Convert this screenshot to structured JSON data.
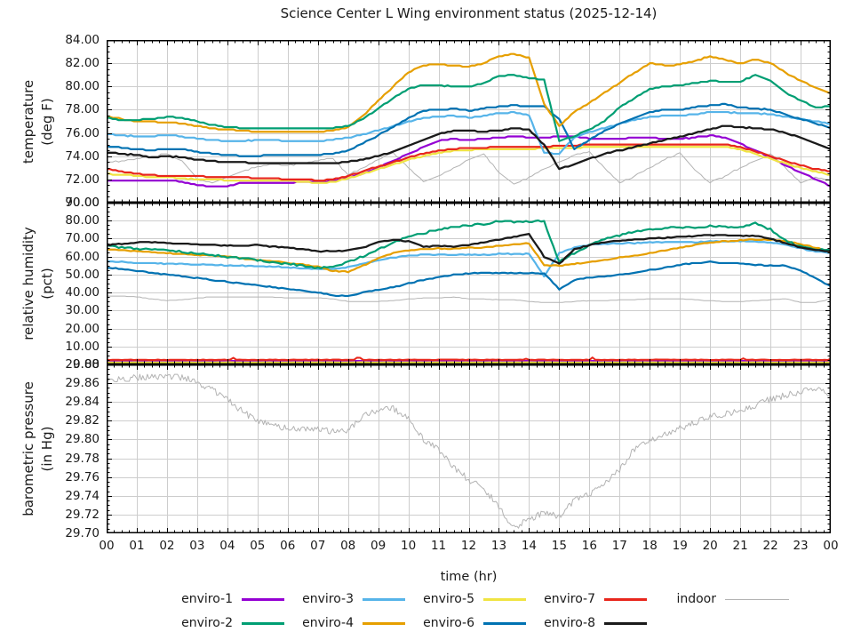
{
  "chart": {
    "title": "Science Center L Wing environment status (2025-12-14)",
    "xlabel": "time (hr)",
    "x_tick_labels": [
      "00",
      "01",
      "02",
      "03",
      "04",
      "05",
      "06",
      "07",
      "08",
      "09",
      "10",
      "11",
      "12",
      "13",
      "14",
      "15",
      "16",
      "17",
      "18",
      "19",
      "20",
      "21",
      "22",
      "23",
      "00"
    ],
    "colors": {
      "enviro-1": "#9400d3",
      "enviro-2": "#009e73",
      "enviro-3": "#56b4e9",
      "enviro-4": "#e69f00",
      "enviro-5": "#f0e442",
      "enviro-6": "#0072b2",
      "enviro-7": "#e8261c",
      "enviro-8": "#1a1a1a",
      "indoor": "#b3b3b3",
      "grid": "#cdcdcd",
      "frame": "#000000"
    },
    "legend": {
      "rows": [
        [
          "enviro-1",
          "enviro-3",
          "enviro-5",
          "enviro-7",
          "indoor"
        ],
        [
          "enviro-2",
          "enviro-4",
          "enviro-6",
          "enviro-8"
        ]
      ]
    }
  },
  "chart_data": [
    {
      "type": "line",
      "name": "temperature",
      "ylabel_lines": [
        "temperature",
        "(deg F)"
      ],
      "ylim": [
        70,
        84
      ],
      "ytick_step": 2,
      "ytick_decimals": 2,
      "xlim": [
        0,
        24
      ],
      "x_start": 0,
      "x_step": 0.5,
      "grid": true,
      "series": [
        {
          "name": "indoor",
          "values": [
            73.4,
            73.6,
            73.8,
            74.0,
            74.2,
            73.6,
            72.0,
            71.7,
            72.2,
            72.7,
            73.1,
            73.3,
            73.2,
            73.4,
            73.6,
            73.8,
            72.4,
            73.0,
            73.7,
            74.3,
            73.0,
            71.8,
            72.3,
            73.0,
            73.7,
            74.2,
            72.6,
            71.6,
            72.2,
            72.9,
            73.5,
            74.1,
            74.4,
            73.0,
            71.7,
            72.3,
            73.0,
            73.7,
            74.3,
            72.8,
            71.7,
            72.3,
            73.0,
            73.6,
            74.2,
            73.0,
            71.7,
            72.2,
            71.9
          ]
        },
        {
          "name": "enviro-1",
          "values": [
            71.9,
            71.9,
            71.9,
            71.9,
            71.9,
            71.8,
            71.5,
            71.4,
            71.4,
            71.7,
            71.7,
            71.7,
            71.7,
            71.8,
            71.8,
            71.9,
            72.1,
            72.5,
            73.0,
            73.6,
            74.2,
            74.8,
            75.3,
            75.5,
            75.4,
            75.5,
            75.6,
            75.7,
            75.6,
            75.6,
            75.7,
            75.7,
            75.5,
            75.5,
            75.5,
            75.6,
            75.6,
            75.5,
            75.5,
            75.6,
            75.8,
            75.6,
            75.1,
            74.5,
            73.9,
            73.2,
            72.6,
            72.0,
            71.4
          ]
        },
        {
          "name": "enviro-5",
          "values": [
            72.5,
            72.4,
            72.3,
            72.2,
            72.2,
            72.1,
            72.0,
            72.0,
            71.9,
            71.9,
            71.9,
            71.9,
            71.9,
            71.8,
            71.7,
            71.8,
            72.1,
            72.5,
            72.9,
            73.3,
            73.7,
            74.0,
            74.3,
            74.5,
            74.5,
            74.6,
            74.6,
            74.6,
            74.6,
            74.7,
            74.7,
            74.7,
            74.8,
            74.8,
            74.8,
            74.8,
            74.8,
            74.8,
            74.8,
            74.8,
            74.8,
            74.8,
            74.6,
            74.2,
            73.8,
            73.4,
            73.0,
            72.7,
            72.4
          ]
        },
        {
          "name": "enviro-7",
          "values": [
            72.9,
            72.7,
            72.5,
            72.4,
            72.3,
            72.3,
            72.3,
            72.2,
            72.2,
            72.2,
            72.1,
            72.1,
            72.0,
            72.0,
            71.9,
            72.0,
            72.3,
            72.7,
            73.1,
            73.5,
            73.9,
            74.2,
            74.5,
            74.6,
            74.7,
            74.7,
            74.8,
            74.8,
            74.8,
            74.8,
            74.9,
            74.9,
            75.0,
            75.0,
            75.0,
            75.0,
            75.0,
            75.0,
            75.0,
            75.0,
            75.0,
            75.0,
            74.8,
            74.4,
            74.0,
            73.6,
            73.2,
            72.9,
            72.7
          ]
        },
        {
          "name": "enviro-3",
          "values": [
            75.9,
            75.8,
            75.7,
            75.7,
            75.8,
            75.7,
            75.5,
            75.4,
            75.3,
            75.3,
            75.4,
            75.4,
            75.3,
            75.3,
            75.3,
            75.4,
            75.6,
            75.9,
            76.2,
            76.6,
            77.0,
            77.3,
            77.4,
            77.5,
            77.3,
            77.5,
            77.7,
            77.8,
            77.5,
            74.3,
            74.2,
            75.6,
            76.1,
            76.4,
            76.8,
            77.1,
            77.4,
            77.5,
            77.5,
            77.6,
            77.8,
            77.8,
            77.7,
            77.7,
            77.6,
            77.4,
            77.2,
            77.0,
            76.8
          ]
        },
        {
          "name": "enviro-6",
          "values": [
            74.9,
            74.7,
            74.6,
            74.5,
            74.6,
            74.6,
            74.4,
            74.2,
            74.1,
            74.0,
            74.0,
            74.1,
            74.1,
            74.1,
            74.1,
            74.2,
            74.5,
            75.1,
            75.8,
            76.5,
            77.3,
            77.9,
            78.0,
            78.1,
            77.9,
            78.1,
            78.3,
            78.4,
            78.3,
            78.3,
            77.2,
            74.6,
            75.4,
            76.2,
            76.8,
            77.3,
            77.8,
            78.0,
            78.0,
            78.2,
            78.4,
            78.5,
            78.2,
            78.1,
            78.0,
            77.6,
            77.2,
            76.8,
            76.4
          ]
        },
        {
          "name": "enviro-4",
          "values": [
            77.4,
            77.2,
            77.0,
            77.0,
            76.9,
            76.8,
            76.6,
            76.4,
            76.3,
            76.2,
            76.1,
            76.1,
            76.1,
            76.1,
            76.1,
            76.2,
            76.5,
            77.5,
            78.8,
            80.0,
            81.2,
            81.8,
            81.9,
            81.8,
            81.7,
            82.0,
            82.6,
            82.8,
            82.5,
            78.5,
            76.6,
            77.8,
            78.6,
            79.5,
            80.3,
            81.2,
            82.0,
            81.8,
            81.9,
            82.2,
            82.6,
            82.3,
            82.0,
            82.3,
            82.0,
            81.2,
            80.5,
            79.9,
            79.4
          ]
        },
        {
          "name": "enviro-2",
          "values": [
            77.3,
            77.1,
            77.1,
            77.2,
            77.4,
            77.3,
            77.0,
            76.7,
            76.5,
            76.4,
            76.4,
            76.4,
            76.4,
            76.4,
            76.4,
            76.4,
            76.6,
            77.2,
            78.1,
            79.0,
            79.8,
            80.1,
            80.1,
            80.0,
            80.0,
            80.3,
            80.9,
            81.0,
            80.7,
            80.6,
            75.3,
            75.7,
            76.3,
            77.0,
            78.2,
            79.0,
            79.8,
            80.0,
            80.1,
            80.3,
            80.5,
            80.4,
            80.4,
            81.0,
            80.5,
            79.5,
            78.8,
            78.2,
            78.3
          ]
        },
        {
          "name": "enviro-8",
          "values": [
            74.3,
            74.2,
            74.1,
            73.9,
            74.0,
            73.9,
            73.7,
            73.6,
            73.5,
            73.5,
            73.4,
            73.4,
            73.4,
            73.4,
            73.4,
            73.4,
            73.5,
            73.7,
            74.0,
            74.4,
            74.9,
            75.4,
            75.9,
            76.2,
            76.2,
            76.1,
            76.2,
            76.4,
            76.3,
            75.0,
            72.9,
            73.3,
            73.8,
            74.2,
            74.5,
            74.8,
            75.1,
            75.4,
            75.7,
            76.0,
            76.3,
            76.6,
            76.5,
            76.4,
            76.3,
            76.0,
            75.6,
            75.1,
            74.6
          ]
        }
      ]
    },
    {
      "type": "line",
      "name": "relative-humidity",
      "ylabel_lines": [
        "relative humidity",
        "(pct)"
      ],
      "ylim": [
        0,
        90
      ],
      "ytick_step": 10,
      "ytick_decimals": 2,
      "xlim": [
        0,
        24
      ],
      "x_start": 0,
      "x_step": 0.5,
      "grid": true,
      "series": [
        {
          "name": "indoor",
          "values": [
            38,
            38,
            37.5,
            36.5,
            35.5,
            36,
            37,
            37.5,
            37.5,
            37.5,
            37.5,
            37.5,
            37,
            37,
            37,
            36.5,
            35,
            35,
            35,
            35.5,
            36.5,
            37,
            37,
            37.5,
            36.5,
            36.5,
            36,
            36,
            35,
            34.5,
            34.5,
            35,
            35.5,
            35.5,
            36,
            36,
            36.5,
            36.5,
            36.5,
            36,
            35.5,
            35,
            35,
            35.5,
            36,
            36.5,
            34.5,
            34.5,
            36.5
          ]
        },
        {
          "name": "enviro-1",
          "values": 2.0
        },
        {
          "name": "enviro-5",
          "values": 1.2
        },
        {
          "name": "enviro-7",
          "values": 2.6
        },
        {
          "name": "enviro-3",
          "values": [
            57.5,
            57,
            56.5,
            56.5,
            56,
            56,
            55.5,
            55.5,
            55,
            55,
            54.5,
            54.5,
            54,
            53.5,
            53,
            53,
            54,
            56,
            58,
            59.5,
            60.5,
            61,
            61,
            61,
            61,
            61,
            61.5,
            61.5,
            61.5,
            49,
            62,
            65,
            66.5,
            67,
            67.5,
            67.5,
            68,
            68,
            68,
            68,
            68.5,
            68.5,
            68.5,
            68.5,
            68,
            66.5,
            64.5,
            63,
            62
          ]
        },
        {
          "name": "enviro-6",
          "values": [
            54,
            53,
            52,
            51,
            50,
            49,
            48,
            47,
            46,
            45,
            44,
            43,
            42,
            41,
            40,
            38.5,
            38,
            40,
            41.5,
            43,
            45,
            47,
            48.5,
            50,
            50.5,
            51,
            51,
            51,
            51,
            50.5,
            42,
            47,
            48.5,
            49,
            50,
            51,
            52.5,
            54,
            55.5,
            56.5,
            57,
            56.5,
            56,
            55.5,
            55,
            55,
            52,
            48,
            43.5
          ]
        },
        {
          "name": "enviro-4",
          "values": [
            64,
            63.5,
            63,
            62.5,
            62,
            61.5,
            61,
            60.5,
            60,
            59,
            58,
            57.5,
            56.5,
            55.5,
            54.5,
            52,
            51.5,
            55,
            59,
            62,
            63.5,
            64,
            64.5,
            64.5,
            65,
            65,
            66,
            67,
            67.5,
            55,
            55,
            56,
            57,
            58,
            59.5,
            60.5,
            62,
            63.5,
            65,
            66.5,
            68,
            68.5,
            69,
            69.5,
            69.5,
            68.5,
            67,
            65,
            62.5
          ]
        },
        {
          "name": "enviro-2",
          "values": [
            66,
            65,
            64.5,
            64,
            63.5,
            62.5,
            61.5,
            61,
            60,
            59,
            58,
            57,
            56,
            55,
            53.5,
            54,
            57,
            60,
            64,
            68,
            71,
            73,
            75,
            76.5,
            77.5,
            78,
            80,
            79,
            79.5,
            79.5,
            57,
            62,
            66,
            70,
            72,
            74,
            75,
            76,
            76.5,
            76,
            77,
            76.5,
            76.5,
            78.5,
            75,
            69,
            65.5,
            64,
            63.5
          ]
        },
        {
          "name": "enviro-8",
          "values": [
            66.5,
            67,
            68,
            68,
            67.5,
            67,
            67,
            66.5,
            66,
            66,
            66.5,
            65.5,
            65,
            64,
            63,
            63,
            63.5,
            65,
            68,
            69.5,
            68.5,
            65.5,
            66,
            65.5,
            66.5,
            68,
            69.5,
            71,
            72.5,
            60,
            56,
            64,
            66.5,
            68,
            69,
            69.5,
            70,
            70.5,
            71,
            71.5,
            72,
            72,
            71.5,
            71.5,
            70,
            67.5,
            65,
            63.5,
            63
          ]
        }
      ]
    },
    {
      "type": "line",
      "name": "barometric-pressure",
      "ylabel_lines": [
        "barometric pressure",
        "(in Hg)"
      ],
      "ylim": [
        29.7,
        29.88
      ],
      "ytick_step": 0.02,
      "ytick_decimals": 2,
      "xlim": [
        0,
        24
      ],
      "x_start": 0,
      "x_step": 0.5,
      "grid": true,
      "series": [
        {
          "name": "indoor",
          "values": [
            29.866,
            29.864,
            29.866,
            29.867,
            29.868,
            29.866,
            29.861,
            29.853,
            29.843,
            29.83,
            29.82,
            29.815,
            29.811,
            29.81,
            29.812,
            29.808,
            29.81,
            29.824,
            29.831,
            29.833,
            29.824,
            29.8,
            29.79,
            29.77,
            29.757,
            29.748,
            29.728,
            29.706,
            29.715,
            29.722,
            29.718,
            29.735,
            29.742,
            29.752,
            29.768,
            29.79,
            29.8,
            29.806,
            29.812,
            29.818,
            29.824,
            29.827,
            29.83,
            29.836,
            29.843,
            29.847,
            29.851,
            29.854,
            29.848
          ]
        }
      ]
    }
  ]
}
